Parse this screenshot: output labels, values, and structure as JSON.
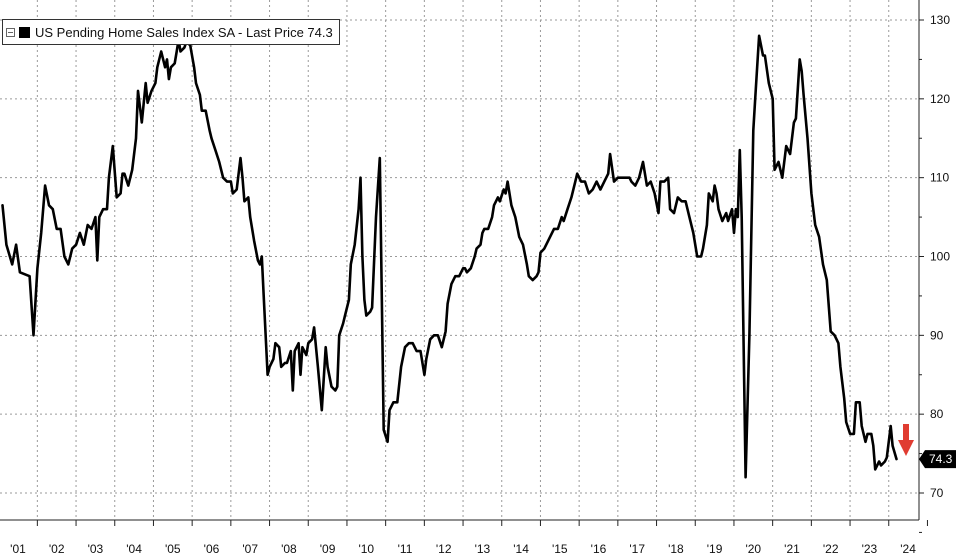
{
  "chart_data": {
    "type": "line",
    "title": "",
    "xlabel": "",
    "ylabel": "",
    "legend": {
      "placement": "top-left",
      "entries": [
        {
          "name": "US Pending Home Sales Index SA",
          "text": "US Pending Home Sales Index SA - Last Price 74.3",
          "color": "#000000"
        }
      ]
    },
    "last_price_label": "74.3",
    "annotation": {
      "type": "down-arrow",
      "color": "#e03c31"
    },
    "grid": true,
    "x_axis": {
      "tick_labels": [
        "'01",
        "'02",
        "'03",
        "'04",
        "'05",
        "'06",
        "'07",
        "'08",
        "'09",
        "'10",
        "'11",
        "'12",
        "'13",
        "'14",
        "'15",
        "'16",
        "'17",
        "'18",
        "'19",
        "'20",
        "'21",
        "'22",
        "'23",
        "'24"
      ],
      "range": [
        2000.6,
        2024.5
      ]
    },
    "y_axis": {
      "tick_labels": [
        "70",
        "80",
        "90",
        "100",
        "110",
        "120",
        "130"
      ],
      "range": [
        65,
        132
      ],
      "side": "right"
    },
    "series": [
      {
        "name": "US Pending Home Sales Index SA",
        "color": "#000000",
        "points": [
          [
            2000.6,
            106.5
          ],
          [
            2000.7,
            101.5
          ],
          [
            2000.85,
            99
          ],
          [
            2000.95,
            101.5
          ],
          [
            2001.05,
            98
          ],
          [
            2001.3,
            97.5
          ],
          [
            2001.4,
            90
          ],
          [
            2001.5,
            98.5
          ],
          [
            2001.6,
            103
          ],
          [
            2001.7,
            109
          ],
          [
            2001.8,
            106.5
          ],
          [
            2001.9,
            106
          ],
          [
            2002.0,
            103.5
          ],
          [
            2002.1,
            103.5
          ],
          [
            2002.2,
            100
          ],
          [
            2002.3,
            99
          ],
          [
            2002.4,
            101
          ],
          [
            2002.5,
            101.5
          ],
          [
            2002.6,
            103
          ],
          [
            2002.7,
            101.5
          ],
          [
            2002.8,
            104
          ],
          [
            2002.9,
            103.5
          ],
          [
            2003.0,
            105
          ],
          [
            2003.05,
            99.5
          ],
          [
            2003.1,
            105
          ],
          [
            2003.2,
            106
          ],
          [
            2003.3,
            106
          ],
          [
            2003.35,
            110
          ],
          [
            2003.45,
            114
          ],
          [
            2003.55,
            107.5
          ],
          [
            2003.65,
            108
          ],
          [
            2003.7,
            110.5
          ],
          [
            2003.75,
            110.5
          ],
          [
            2003.85,
            109
          ],
          [
            2003.95,
            111
          ],
          [
            2004.05,
            115
          ],
          [
            2004.1,
            121
          ],
          [
            2004.2,
            117
          ],
          [
            2004.3,
            122
          ],
          [
            2004.35,
            119.5
          ],
          [
            2004.45,
            121
          ],
          [
            2004.55,
            122
          ],
          [
            2004.6,
            124
          ],
          [
            2004.7,
            126
          ],
          [
            2004.8,
            124
          ],
          [
            2004.85,
            125
          ],
          [
            2004.9,
            122.5
          ],
          [
            2004.95,
            124
          ],
          [
            2005.05,
            124.5
          ],
          [
            2005.1,
            126
          ],
          [
            2005.15,
            127.5
          ],
          [
            2005.2,
            126
          ],
          [
            2005.3,
            126.5
          ],
          [
            2005.35,
            127.2
          ],
          [
            2005.45,
            126.8
          ],
          [
            2005.55,
            124
          ],
          [
            2005.6,
            122
          ],
          [
            2005.7,
            120.5
          ],
          [
            2005.75,
            118.5
          ],
          [
            2005.85,
            118.5
          ],
          [
            2005.95,
            116
          ],
          [
            2006.0,
            115
          ],
          [
            2006.1,
            113.5
          ],
          [
            2006.2,
            112
          ],
          [
            2006.3,
            110
          ],
          [
            2006.4,
            109.5
          ],
          [
            2006.5,
            109.5
          ],
          [
            2006.55,
            108
          ],
          [
            2006.65,
            108.5
          ],
          [
            2006.75,
            112.5
          ],
          [
            2006.8,
            110
          ],
          [
            2006.85,
            107
          ],
          [
            2006.95,
            107.5
          ],
          [
            2007.0,
            105
          ],
          [
            2007.1,
            102
          ],
          [
            2007.2,
            99.5
          ],
          [
            2007.25,
            99
          ],
          [
            2007.3,
            100
          ],
          [
            2007.35,
            95
          ],
          [
            2007.45,
            85
          ],
          [
            2007.5,
            86
          ],
          [
            2007.6,
            87
          ],
          [
            2007.65,
            89
          ],
          [
            2007.75,
            88.5
          ],
          [
            2007.8,
            86
          ],
          [
            2007.9,
            86.5
          ],
          [
            2007.95,
            86.5
          ],
          [
            2008.05,
            88
          ],
          [
            2008.1,
            83
          ],
          [
            2008.15,
            88
          ],
          [
            2008.25,
            89
          ],
          [
            2008.3,
            85
          ],
          [
            2008.35,
            88.5
          ],
          [
            2008.45,
            87.5
          ],
          [
            2008.5,
            89
          ],
          [
            2008.6,
            89.5
          ],
          [
            2008.65,
            91
          ],
          [
            2008.75,
            86
          ],
          [
            2008.85,
            80.5
          ],
          [
            2008.95,
            88.5
          ],
          [
            2009.0,
            86
          ],
          [
            2009.1,
            83.5
          ],
          [
            2009.2,
            83
          ],
          [
            2009.25,
            83.5
          ],
          [
            2009.3,
            90
          ],
          [
            2009.4,
            91.5
          ],
          [
            2009.45,
            92.5
          ],
          [
            2009.55,
            94.5
          ],
          [
            2009.6,
            99
          ],
          [
            2009.7,
            101.5
          ],
          [
            2009.8,
            106
          ],
          [
            2009.85,
            110
          ],
          [
            2009.9,
            100
          ],
          [
            2009.95,
            94.5
          ],
          [
            2010.0,
            92.5
          ],
          [
            2010.1,
            93
          ],
          [
            2010.15,
            93.5
          ],
          [
            2010.25,
            105
          ],
          [
            2010.35,
            112.5
          ],
          [
            2010.45,
            78
          ],
          [
            2010.55,
            76.5
          ],
          [
            2010.6,
            80.5
          ],
          [
            2010.7,
            81.5
          ],
          [
            2010.8,
            81.5
          ],
          [
            2010.9,
            86
          ],
          [
            2011.0,
            88.5
          ],
          [
            2011.1,
            89
          ],
          [
            2011.2,
            89
          ],
          [
            2011.3,
            88
          ],
          [
            2011.4,
            88
          ],
          [
            2011.5,
            85
          ],
          [
            2011.55,
            87
          ],
          [
            2011.65,
            89.5
          ],
          [
            2011.75,
            90
          ],
          [
            2011.85,
            90
          ],
          [
            2011.95,
            88.5
          ],
          [
            2012.05,
            90.5
          ],
          [
            2012.1,
            94
          ],
          [
            2012.2,
            96.5
          ],
          [
            2012.3,
            97.5
          ],
          [
            2012.4,
            97.5
          ],
          [
            2012.5,
            98.5
          ],
          [
            2012.55,
            98.5
          ],
          [
            2012.6,
            98
          ],
          [
            2012.7,
            98.5
          ],
          [
            2012.8,
            100
          ],
          [
            2012.85,
            101
          ],
          [
            2012.95,
            101.5
          ],
          [
            2013.0,
            103
          ],
          [
            2013.05,
            103.5
          ],
          [
            2013.15,
            103.5
          ],
          [
            2013.25,
            105
          ],
          [
            2013.3,
            106.5
          ],
          [
            2013.4,
            107.5
          ],
          [
            2013.45,
            107
          ],
          [
            2013.55,
            108.5
          ],
          [
            2013.6,
            108
          ],
          [
            2013.65,
            109.5
          ],
          [
            2013.75,
            106.5
          ],
          [
            2013.85,
            105
          ],
          [
            2013.95,
            102.5
          ],
          [
            2014.05,
            101.5
          ],
          [
            2014.15,
            99
          ],
          [
            2014.2,
            97.5
          ],
          [
            2014.3,
            97
          ],
          [
            2014.4,
            97.5
          ],
          [
            2014.45,
            98
          ],
          [
            2014.5,
            100.5
          ],
          [
            2014.6,
            101
          ],
          [
            2014.7,
            102
          ],
          [
            2014.75,
            102.5
          ],
          [
            2014.85,
            103.5
          ],
          [
            2014.95,
            103.5
          ],
          [
            2015.05,
            105
          ],
          [
            2015.1,
            104.5
          ],
          [
            2015.2,
            106
          ],
          [
            2015.3,
            107.5
          ],
          [
            2015.4,
            109.5
          ],
          [
            2015.45,
            110.5
          ],
          [
            2015.55,
            109.5
          ],
          [
            2015.65,
            109.5
          ],
          [
            2015.75,
            108
          ],
          [
            2015.85,
            108.5
          ],
          [
            2015.95,
            109.5
          ],
          [
            2016.05,
            108.5
          ],
          [
            2016.15,
            109.5
          ],
          [
            2016.25,
            110.5
          ],
          [
            2016.3,
            113
          ],
          [
            2016.4,
            109.5
          ],
          [
            2016.5,
            110
          ],
          [
            2016.6,
            110
          ],
          [
            2016.7,
            110
          ],
          [
            2016.8,
            110
          ],
          [
            2016.85,
            109.5
          ],
          [
            2016.95,
            109
          ],
          [
            2017.05,
            110
          ],
          [
            2017.15,
            112
          ],
          [
            2017.25,
            109
          ],
          [
            2017.35,
            109.5
          ],
          [
            2017.45,
            108
          ],
          [
            2017.55,
            105.5
          ],
          [
            2017.6,
            109.5
          ],
          [
            2017.7,
            109.5
          ],
          [
            2017.8,
            110
          ],
          [
            2017.85,
            106
          ],
          [
            2017.95,
            105.5
          ],
          [
            2018.05,
            107.5
          ],
          [
            2018.15,
            107
          ],
          [
            2018.25,
            107
          ],
          [
            2018.35,
            105
          ],
          [
            2018.45,
            103
          ],
          [
            2018.55,
            100
          ],
          [
            2018.65,
            100
          ],
          [
            2018.7,
            101
          ],
          [
            2018.8,
            104
          ],
          [
            2018.85,
            108
          ],
          [
            2018.95,
            107
          ],
          [
            2019.0,
            109
          ],
          [
            2019.05,
            108
          ],
          [
            2019.1,
            106
          ],
          [
            2019.2,
            104.5
          ],
          [
            2019.3,
            105.5
          ],
          [
            2019.35,
            104.5
          ],
          [
            2019.45,
            106
          ],
          [
            2019.5,
            103
          ],
          [
            2019.55,
            106
          ],
          [
            2019.6,
            105
          ],
          [
            2019.65,
            113.5
          ],
          [
            2019.7,
            105
          ],
          [
            2019.8,
            72
          ],
          [
            2019.9,
            90
          ],
          [
            2020.0,
            116
          ],
          [
            2020.05,
            120
          ],
          [
            2020.15,
            128
          ],
          [
            2020.25,
            125.5
          ],
          [
            2020.3,
            125.5
          ],
          [
            2020.4,
            122
          ],
          [
            2020.5,
            120
          ],
          [
            2020.55,
            111
          ],
          [
            2020.65,
            112
          ],
          [
            2020.75,
            110
          ],
          [
            2020.85,
            114
          ],
          [
            2020.95,
            113
          ],
          [
            2021.05,
            117
          ],
          [
            2021.1,
            117.5
          ],
          [
            2021.2,
            125
          ],
          [
            2021.25,
            123.5
          ],
          [
            2021.3,
            120.5
          ],
          [
            2021.4,
            115
          ],
          [
            2021.5,
            108
          ],
          [
            2021.6,
            104
          ],
          [
            2021.7,
            102.5
          ],
          [
            2021.8,
            99
          ],
          [
            2021.9,
            97
          ],
          [
            2022.0,
            90.5
          ],
          [
            2022.1,
            90
          ],
          [
            2022.2,
            89
          ],
          [
            2022.25,
            86
          ],
          [
            2022.35,
            82
          ],
          [
            2022.4,
            79
          ],
          [
            2022.5,
            77.5
          ],
          [
            2022.6,
            77.5
          ],
          [
            2022.65,
            81.5
          ],
          [
            2022.75,
            81.5
          ],
          [
            2022.8,
            78.5
          ],
          [
            2022.9,
            76.5
          ],
          [
            2022.95,
            77.5
          ],
          [
            2023.05,
            77.5
          ],
          [
            2023.1,
            76
          ],
          [
            2023.15,
            73
          ],
          [
            2023.25,
            74
          ],
          [
            2023.3,
            73.5
          ],
          [
            2023.4,
            74
          ],
          [
            2023.45,
            74.5
          ],
          [
            2023.55,
            78.5
          ],
          [
            2023.6,
            76
          ],
          [
            2023.7,
            74.3
          ]
        ]
      }
    ]
  }
}
